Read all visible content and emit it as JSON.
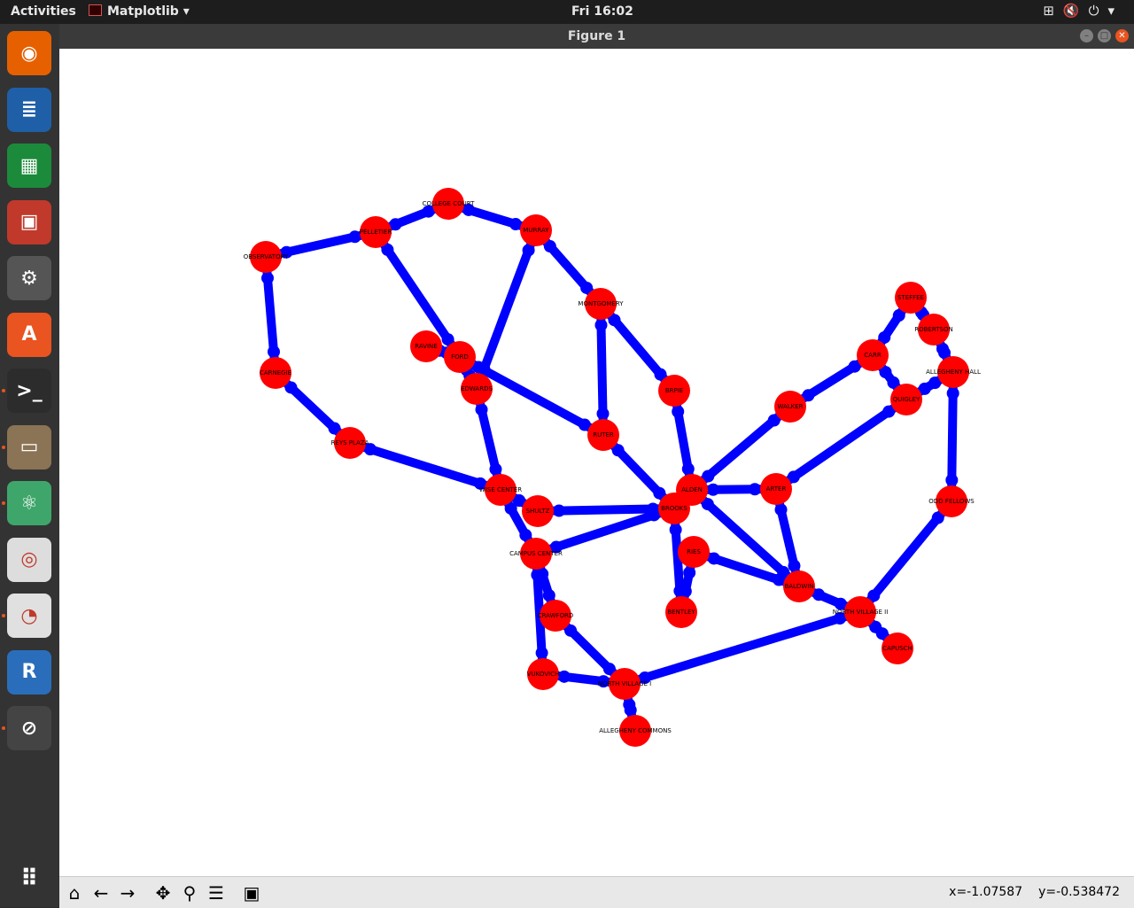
{
  "topbar": {
    "activities": "Activities",
    "app_menu": "Matplotlib",
    "clock": "Fri 16:02",
    "tray_icons": [
      "network-icon",
      "volume-muted-icon",
      "power-icon"
    ]
  },
  "dock": {
    "items": [
      {
        "name": "firefox",
        "icon": "firefox-icon",
        "color": "#e66000"
      },
      {
        "name": "writer",
        "icon": "writer-icon",
        "color": "#1f5fa8"
      },
      {
        "name": "calc",
        "icon": "calc-icon",
        "color": "#1c8a3b"
      },
      {
        "name": "impress",
        "icon": "impress-icon",
        "color": "#c0392b"
      },
      {
        "name": "settings",
        "icon": "settings-icon",
        "color": "#555555"
      },
      {
        "name": "software",
        "icon": "software-center-icon",
        "color": "#e95420"
      },
      {
        "name": "terminal",
        "icon": "terminal-icon",
        "color": "#2c2c2c"
      },
      {
        "name": "files",
        "icon": "files-icon",
        "color": "#8b7355"
      },
      {
        "name": "atom",
        "icon": "atom-icon",
        "color": "#3fa66b"
      },
      {
        "name": "chrome",
        "icon": "chrome-icon",
        "color": "#dddddd"
      },
      {
        "name": "evince",
        "icon": "document-viewer-icon",
        "color": "#e0e0e0"
      },
      {
        "name": "rstudio",
        "icon": "r-icon",
        "color": "#2a6ebb"
      },
      {
        "name": "matplotlib",
        "icon": "python-window-icon",
        "color": "#444444"
      }
    ],
    "apps_grid": "show-apps-icon"
  },
  "window": {
    "title": "Figure 1"
  },
  "toolbar": {
    "buttons": [
      "home-icon",
      "back-icon",
      "forward-icon",
      "pan-icon",
      "zoom-icon",
      "configure-subplots-icon",
      "save-icon"
    ],
    "x_readout": "x=-1.07587",
    "y_readout": "y=-0.538472"
  },
  "graph": {
    "node_color": "#ff0000",
    "edge_color": "#0000ff",
    "nodes": [
      {
        "id": "COLLEGE COURT",
        "label": "COLLEGE COURT"
      },
      {
        "id": "PELLETIER",
        "label": "PELLETIER"
      },
      {
        "id": "MURRAY",
        "label": "MURRAY"
      },
      {
        "id": "OBSERVATORY",
        "label": "OBSERVATORY"
      },
      {
        "id": "MONTGOMERY",
        "label": "MONTGOMERY"
      },
      {
        "id": "STEFFEE",
        "label": "STEFFEE"
      },
      {
        "id": "ROBERTSON",
        "label": "ROBERTSON"
      },
      {
        "id": "RAVINE",
        "label": "RAVINE"
      },
      {
        "id": "FORD",
        "label": "FORD"
      },
      {
        "id": "CARR",
        "label": "CARR"
      },
      {
        "id": "ALLEGHENY HALL",
        "label": "ALLEGHENY HALL"
      },
      {
        "id": "CARNEGIE",
        "label": "CARNEGIE"
      },
      {
        "id": "EDWARDS",
        "label": "EDWARDS"
      },
      {
        "id": "BRPIE",
        "label": "BRPIE"
      },
      {
        "id": "QUIGLEY",
        "label": "QUIGLEY"
      },
      {
        "id": "WALKER",
        "label": "WALKER"
      },
      {
        "id": "RUTER",
        "label": "RUTER"
      },
      {
        "id": "REYS PLAZA",
        "label": "REYS PLAZA"
      },
      {
        "id": "WISE CENTER",
        "label": "WISE CENTER"
      },
      {
        "id": "ALDEN",
        "label": "ALDEN"
      },
      {
        "id": "ARTER",
        "label": "ARTER"
      },
      {
        "id": "ODD FELLOWS",
        "label": "ODD FELLOWS"
      },
      {
        "id": "BROOKS",
        "label": "BROOKS"
      },
      {
        "id": "SHULTZ",
        "label": "SHULTZ"
      },
      {
        "id": "CAMPUS CENTER",
        "label": "CAMPUS CENTER"
      },
      {
        "id": "RIES",
        "label": "RIES"
      },
      {
        "id": "BALDWIN",
        "label": "BALDWIN"
      },
      {
        "id": "BENTLEY",
        "label": "BENTLEY"
      },
      {
        "id": "NORTH VILLAGE II",
        "label": "NORTH VILLAGE II"
      },
      {
        "id": "CRAWFORD",
        "label": "CRAWFORD"
      },
      {
        "id": "CAPUSCH",
        "label": "CAPUSCH"
      },
      {
        "id": "VUKOVICH",
        "label": "VUKOVICH"
      },
      {
        "id": "NORTH VILLAGE I",
        "label": "NORTH VILLAGE I"
      },
      {
        "id": "ALLEGHENY COMMONS",
        "label": "ALLEGHENY COMMONS"
      }
    ],
    "edges": [
      [
        "OBSERVATORY",
        "PELLETIER"
      ],
      [
        "PELLETIER",
        "COLLEGE COURT"
      ],
      [
        "COLLEGE COURT",
        "MURRAY"
      ],
      [
        "OBSERVATORY",
        "CARNEGIE"
      ],
      [
        "CARNEGIE",
        "REYS PLAZA"
      ],
      [
        "REYS PLAZA",
        "WISE CENTER"
      ],
      [
        "PELLETIER",
        "FORD"
      ],
      [
        "MURRAY",
        "EDWARDS"
      ],
      [
        "MURRAY",
        "MONTGOMERY"
      ],
      [
        "MONTGOMERY",
        "RUTER"
      ],
      [
        "MONTGOMERY",
        "BRPIE"
      ],
      [
        "RAVINE",
        "FORD"
      ],
      [
        "FORD",
        "EDWARDS"
      ],
      [
        "FORD",
        "RUTER"
      ],
      [
        "EDWARDS",
        "WISE CENTER"
      ],
      [
        "RUTER",
        "BROOKS"
      ],
      [
        "BRPIE",
        "ALDEN"
      ],
      [
        "STEFFEE",
        "ROBERTSON"
      ],
      [
        "STEFFEE",
        "CARR"
      ],
      [
        "ROBERTSON",
        "ALLEGHENY HALL"
      ],
      [
        "CARR",
        "QUIGLEY"
      ],
      [
        "CARR",
        "WALKER"
      ],
      [
        "ALLEGHENY HALL",
        "QUIGLEY"
      ],
      [
        "ALLEGHENY HALL",
        "ODD FELLOWS"
      ],
      [
        "QUIGLEY",
        "ARTER"
      ],
      [
        "WALKER",
        "ALDEN"
      ],
      [
        "WISE CENTER",
        "SHULTZ"
      ],
      [
        "WISE CENTER",
        "CAMPUS CENTER"
      ],
      [
        "SHULTZ",
        "BROOKS"
      ],
      [
        "CAMPUS CENTER",
        "BROOKS"
      ],
      [
        "ALDEN",
        "BROOKS"
      ],
      [
        "ALDEN",
        "ARTER"
      ],
      [
        "ALDEN",
        "BALDWIN"
      ],
      [
        "ARTER",
        "BALDWIN"
      ],
      [
        "BROOKS",
        "BENTLEY"
      ],
      [
        "RIES",
        "BENTLEY"
      ],
      [
        "RIES",
        "BALDWIN"
      ],
      [
        "BALDWIN",
        "NORTH VILLAGE II"
      ],
      [
        "ODD FELLOWS",
        "NORTH VILLAGE II"
      ],
      [
        "NORTH VILLAGE II",
        "CAPUSCH"
      ],
      [
        "NORTH VILLAGE II",
        "NORTH VILLAGE I"
      ],
      [
        "CAMPUS CENTER",
        "CRAWFORD"
      ],
      [
        "CAMPUS CENTER",
        "VUKOVICH"
      ],
      [
        "CRAWFORD",
        "NORTH VILLAGE I"
      ],
      [
        "VUKOVICH",
        "NORTH VILLAGE I"
      ],
      [
        "NORTH VILLAGE I",
        "ALLEGHENY COMMONS"
      ]
    ]
  }
}
